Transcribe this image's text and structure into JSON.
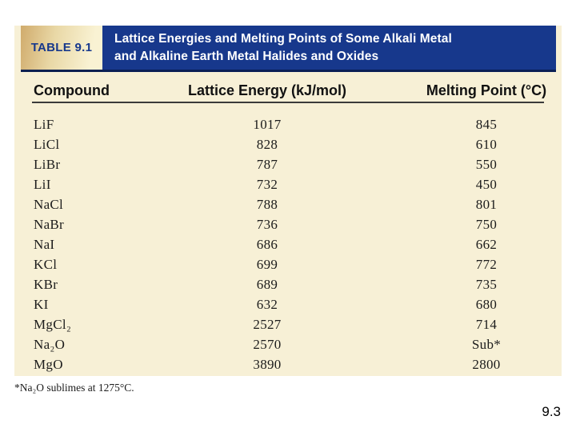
{
  "slide": {
    "page_number": "9.3"
  },
  "table": {
    "label": "TABLE 9.1",
    "title_line1": "Lattice Energies and Melting Points of Some Alkali Metal",
    "title_line2": "and Alkaline Earth Metal Halides and Oxides",
    "headers": {
      "compound": "Compound",
      "lattice_energy": "Lattice Energy (kJ/mol)",
      "melting_point": "Melting Point (°C)"
    },
    "rows": [
      {
        "compound": "LiF",
        "lattice_energy": "1017",
        "melting_point": "845"
      },
      {
        "compound": "LiCl",
        "lattice_energy": "828",
        "melting_point": "610"
      },
      {
        "compound": "LiBr",
        "lattice_energy": "787",
        "melting_point": "550"
      },
      {
        "compound": "LiI",
        "lattice_energy": "732",
        "melting_point": "450"
      },
      {
        "compound": "NaCl",
        "lattice_energy": "788",
        "melting_point": "801"
      },
      {
        "compound": "NaBr",
        "lattice_energy": "736",
        "melting_point": "750"
      },
      {
        "compound": "NaI",
        "lattice_energy": "686",
        "melting_point": "662"
      },
      {
        "compound": "KCl",
        "lattice_energy": "699",
        "melting_point": "772"
      },
      {
        "compound": "KBr",
        "lattice_energy": "689",
        "melting_point": "735"
      },
      {
        "compound": "KI",
        "lattice_energy": "632",
        "melting_point": "680"
      },
      {
        "compound": "MgCl₂",
        "lattice_energy": "2527",
        "melting_point": "714"
      },
      {
        "compound": "Na₂O",
        "lattice_energy": "2570",
        "melting_point": "Sub*"
      },
      {
        "compound": "MgO",
        "lattice_energy": "3890",
        "melting_point": "2800"
      }
    ],
    "footnote": "*Na₂O sublimes at 1275°C."
  },
  "colors": {
    "banner_navy": "#17388c",
    "banner_border_navy": "#0a1f55",
    "panel_cream": "#f7f0d6",
    "label_gradient_tan": "#d0ab6c",
    "label_text_navy": "#17388c",
    "text_black": "#1c1c1c"
  },
  "chart_data": {
    "type": "table",
    "table_label": "TABLE 9.1",
    "title": "Lattice Energies and Melting Points of Some Alkali Metal and Alkaline Earth Metal Halides and Oxides",
    "columns": [
      "Compound",
      "Lattice Energy (kJ/mol)",
      "Melting Point (°C)"
    ],
    "rows": [
      [
        "LiF",
        1017,
        845
      ],
      [
        "LiCl",
        828,
        610
      ],
      [
        "LiBr",
        787,
        550
      ],
      [
        "LiI",
        732,
        450
      ],
      [
        "NaCl",
        788,
        801
      ],
      [
        "NaBr",
        736,
        750
      ],
      [
        "NaI",
        686,
        662
      ],
      [
        "KCl",
        699,
        772
      ],
      [
        "KBr",
        689,
        735
      ],
      [
        "KI",
        632,
        680
      ],
      [
        "MgCl₂",
        2527,
        714
      ],
      [
        "Na₂O",
        2570,
        "Sub*"
      ],
      [
        "MgO",
        3890,
        2800
      ]
    ],
    "footnote": "*Na₂O sublimes at 1275°C.",
    "slide_number": "9.3"
  }
}
